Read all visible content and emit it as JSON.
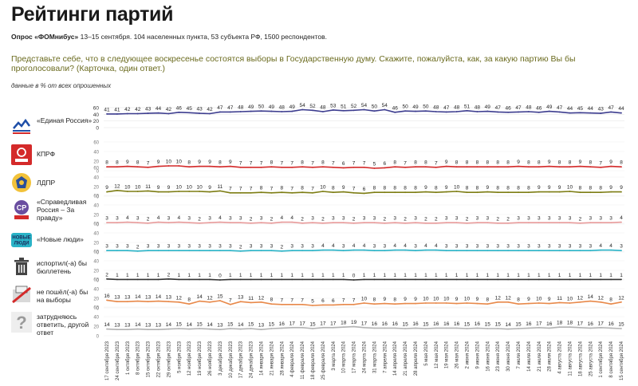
{
  "header": {
    "title": "Рейтинги партий",
    "subtitle_bold": "Опрос «ФОМнибус»",
    "subtitle_rest": " 13–15 сентября. 104 населенных пункта, 53 субъекта РФ, 1500 респондентов.",
    "question": "Представьте себе, что в следующее воскресенье состоятся выборы в Государственную думу. Скажите, пожалуйста, как, за какую партию Вы бы проголосовали? (Карточка, один ответ.)",
    "note": "данные в % от всех опрошенных"
  },
  "icons": {
    "er": "united-russia-logo-icon",
    "kprf": "kprf-logo-icon",
    "ldpr": "ldpr-logo-icon",
    "sr": "sr-logo-icon",
    "nl": "new-people-logo-icon",
    "spoil": "trash-bin-icon",
    "noshow": "no-vote-icon",
    "hard": "question-mark-icon"
  },
  "chart_data": {
    "type": "line",
    "ylim": [
      0,
      60
    ],
    "ytick_labels": [
      "0",
      "20",
      "40",
      "60"
    ],
    "grid": true,
    "x": [
      "17 сентября 2023",
      "24 сентября 2023",
      "1 октября 2023",
      "8 октября 2023",
      "15 октября 2023",
      "22 октября 2023",
      "29 октября 2023",
      "5 ноября 2023",
      "12 ноября 2023",
      "19 ноября 2023",
      "26 ноября 2023",
      "3 декабря 2023",
      "10 декабря 2023",
      "17 декабря 2023",
      "24 декабря 2023",
      "14 января 2024",
      "21 января 2024",
      "28 января 2024",
      "4 февраля 2024",
      "11 февраля 2024",
      "18 февраля 2024",
      "25 февраля 2024",
      "3 марта 2024",
      "10 марта 2024",
      "17 марта 2024",
      "24 марта 2024",
      "31 марта 2024",
      "7 апреля 2024",
      "14 апреля 2024",
      "21 апреля 2024",
      "28 апреля 2024",
      "5 мая 2024",
      "12 мая 2024",
      "19 мая 2024",
      "26 мая 2024",
      "2 июня 2024",
      "9 июня 2024",
      "16 июня 2024",
      "23 июня 2024",
      "30 июня 2024",
      "7 июля 2024",
      "14 июля 2024",
      "21 июля 2024",
      "28 июля 2024",
      "4 августа 2024",
      "11 августа 2024",
      "18 августа 2024",
      "25 августа 2024",
      "1 сентября 2024",
      "8 сентября 2024",
      "15 сентября 2024"
    ],
    "series": [
      {
        "key": "er",
        "name": "«Единая Россия»",
        "color": "#3d3d8f",
        "values": [
          41,
          41,
          42,
          42,
          43,
          44,
          42,
          46,
          45,
          43,
          42,
          47,
          47,
          48,
          49,
          50,
          49,
          48,
          49,
          54,
          52,
          48,
          53,
          51,
          52,
          54,
          50,
          54,
          46,
          50,
          49,
          50,
          48,
          47,
          48,
          51,
          48,
          49,
          47,
          46,
          47,
          48,
          46,
          49,
          47,
          44,
          45,
          44,
          43,
          47,
          44
        ]
      },
      {
        "key": "kprf",
        "name": "КПРФ",
        "color": "#d42a2a",
        "values": [
          8,
          8,
          9,
          8,
          7,
          9,
          10,
          10,
          8,
          9,
          9,
          8,
          9,
          7,
          7,
          7,
          8,
          7,
          7,
          8,
          7,
          8,
          7,
          6,
          7,
          7,
          5,
          6,
          8,
          7,
          8,
          8,
          7,
          9,
          8,
          8,
          8,
          8,
          8,
          8,
          9,
          8,
          8,
          9,
          8,
          8,
          9,
          8,
          7,
          9,
          8
        ]
      },
      {
        "key": "ldpr",
        "name": "ЛДПР",
        "color": "#7d7d14",
        "values": [
          9,
          12,
          10,
          10,
          11,
          9,
          9,
          10,
          10,
          10,
          9,
          11,
          7,
          7,
          7,
          8,
          7,
          8,
          7,
          8,
          7,
          10,
          8,
          9,
          7,
          6,
          8,
          8,
          8,
          8,
          8,
          9,
          8,
          9,
          10,
          8,
          8,
          9,
          8,
          8,
          8,
          8,
          9,
          9,
          9,
          10,
          8,
          8,
          8,
          9,
          9
        ]
      },
      {
        "key": "sr",
        "name": "«Справедливая Россия – За правду»",
        "color": "#e89b9b",
        "values": [
          3,
          3,
          4,
          3,
          2,
          4,
          3,
          4,
          3,
          2,
          3,
          4,
          3,
          3,
          2,
          3,
          2,
          4,
          4,
          2,
          3,
          2,
          3,
          3,
          2,
          3,
          3,
          2,
          3,
          2,
          3,
          2,
          2,
          3,
          3,
          2,
          3,
          3,
          2,
          2,
          3,
          3,
          3,
          3,
          3,
          3,
          2,
          3,
          3,
          3,
          4
        ]
      },
      {
        "key": "nl",
        "name": "«Новые люди»",
        "color": "#2ab3c7",
        "values": [
          3,
          3,
          3,
          2,
          3,
          3,
          3,
          3,
          3,
          3,
          3,
          3,
          3,
          2,
          3,
          3,
          3,
          2,
          3,
          3,
          3,
          4,
          4,
          3,
          4,
          4,
          3,
          3,
          4,
          4,
          3,
          4,
          4,
          3,
          3,
          3,
          3,
          3,
          3,
          3,
          3,
          3,
          3,
          3,
          3,
          3,
          3,
          3,
          4,
          4,
          3
        ]
      },
      {
        "key": "spoil",
        "name": "испортил(-а) бы бюллетень",
        "color": "#333333",
        "values": [
          2,
          1,
          1,
          1,
          1,
          1,
          2,
          1,
          1,
          1,
          1,
          0,
          1,
          1,
          1,
          1,
          1,
          1,
          1,
          1,
          1,
          1,
          1,
          1,
          0,
          1,
          1,
          1,
          1,
          1,
          1,
          1,
          1,
          1,
          1,
          1,
          1,
          1,
          1,
          1,
          1,
          1,
          1,
          1,
          1,
          1,
          1,
          1,
          1,
          1,
          1
        ]
      },
      {
        "key": "noshow",
        "name": "не пошёл(-а) бы на выборы",
        "color": "#e8894a",
        "values": [
          16,
          13,
          13,
          14,
          13,
          14,
          13,
          12,
          8,
          14,
          12,
          15,
          7,
          13,
          11,
          12,
          8,
          7,
          7,
          7,
          5,
          6,
          6,
          7,
          7,
          10,
          8,
          9,
          8,
          9,
          9,
          10,
          10,
          10,
          9,
          10,
          9,
          8,
          12,
          12,
          8,
          9,
          10,
          9,
          11,
          10,
          12,
          14,
          12,
          8,
          12
        ]
      },
      {
        "key": "hard",
        "name": "затрудняюсь ответить, другой ответ",
        "color": "#b3b3b3",
        "values": [
          14,
          13,
          13,
          14,
          13,
          13,
          14,
          15,
          14,
          15,
          14,
          13,
          15,
          14,
          15,
          13,
          15,
          16,
          17,
          17,
          15,
          17,
          17,
          18,
          19,
          17,
          16,
          16,
          16,
          15,
          16,
          15,
          16,
          16,
          16,
          15,
          16,
          15,
          15,
          14,
          15,
          16,
          17,
          16,
          18,
          18,
          17,
          16,
          17,
          16,
          15
        ]
      }
    ]
  }
}
